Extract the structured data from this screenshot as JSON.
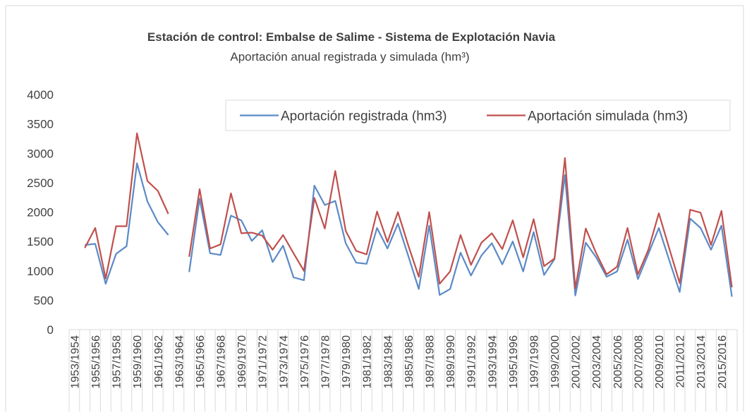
{
  "chart_data": {
    "type": "line",
    "title": "Estación de control: Embalse de Salime - Sistema de Explotación Navia",
    "subtitle": "Aportación anual registrada y simulada (hm³)",
    "categories": [
      "1953/1954",
      null,
      "1955/1956",
      null,
      "1957/1958",
      null,
      "1959/1960",
      null,
      "1961/1962",
      null,
      "1963/1964",
      null,
      "1965/1966",
      null,
      "1967/1968",
      null,
      "1969/1970",
      null,
      "1971/1972",
      null,
      "1973/1974",
      null,
      "1975/1976",
      null,
      "1977/1978",
      null,
      "1979/1980",
      null,
      "1981/1982",
      null,
      "1983/1984",
      null,
      "1985/1986",
      null,
      "1987/1988",
      null,
      "1989/1990",
      null,
      "1991/1992",
      null,
      "1993/1994",
      null,
      "1995/1996",
      null,
      "1997/1998",
      null,
      "1999/2000",
      null,
      "2001/2002",
      null,
      "2003/2004",
      null,
      "2005/2006",
      null,
      "2007/2008",
      null,
      "2009/2010",
      null,
      "2011/2012",
      null,
      "2013/2014",
      null,
      "2015/2016",
      null
    ],
    "series": [
      {
        "name": "Aportación registrada (hm3)",
        "color": "#5b8ac6",
        "values": [
          null,
          1440,
          1460,
          780,
          1290,
          1420,
          2830,
          2180,
          1830,
          1610,
          null,
          980,
          2230,
          1300,
          1270,
          1940,
          1860,
          1510,
          1690,
          1150,
          1430,
          890,
          840,
          2450,
          2120,
          2190,
          1470,
          1140,
          1120,
          1730,
          1380,
          1800,
          1250,
          690,
          1770,
          590,
          690,
          1310,
          920,
          1260,
          1470,
          1110,
          1500,
          990,
          1660,
          930,
          1200,
          2630,
          580,
          1480,
          1230,
          900,
          990,
          1530,
          860,
          1290,
          1730,
          1180,
          640,
          1890,
          1730,
          1360,
          1770,
          560
        ]
      },
      {
        "name": "Aportación simulada (hm3)",
        "color": "#c0504d",
        "values": [
          null,
          1390,
          1730,
          870,
          1760,
          1760,
          3340,
          2530,
          2360,
          1970,
          null,
          1240,
          2390,
          1380,
          1450,
          2320,
          1640,
          1650,
          1600,
          1360,
          1610,
          1300,
          1000,
          2240,
          1720,
          2700,
          1680,
          1340,
          1280,
          2010,
          1490,
          2000,
          1430,
          900,
          2000,
          780,
          990,
          1610,
          1100,
          1480,
          1640,
          1370,
          1860,
          1230,
          1880,
          1080,
          1210,
          2920,
          700,
          1720,
          1300,
          940,
          1070,
          1730,
          940,
          1360,
          1980,
          1380,
          790,
          2040,
          1990,
          1440,
          2020,
          720
        ]
      }
    ],
    "ylim": [
      0,
      4000
    ],
    "yticks": [
      0,
      500,
      1000,
      1500,
      2000,
      2500,
      3000,
      3500,
      4000
    ],
    "grid": false,
    "legend": "top-right"
  }
}
